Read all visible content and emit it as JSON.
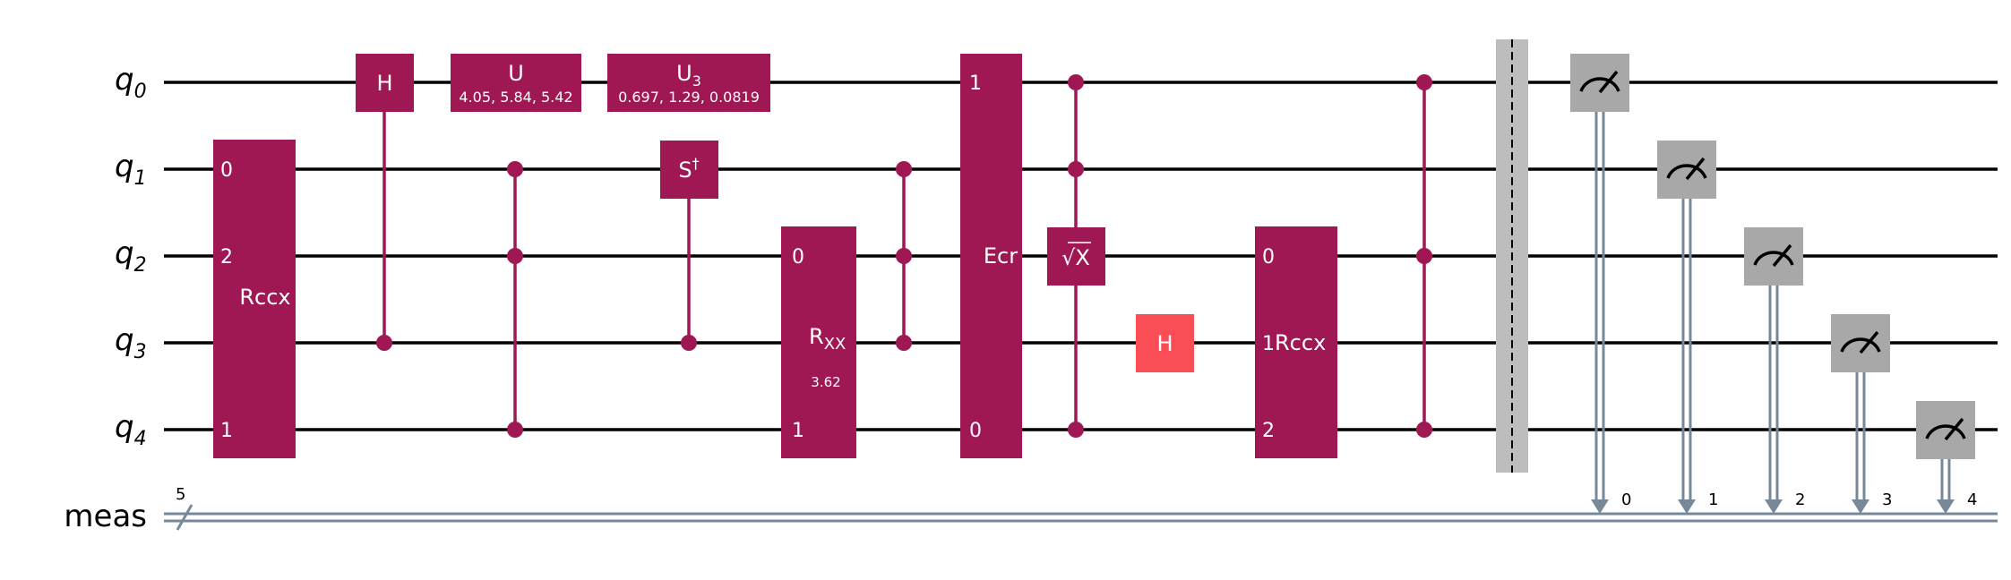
{
  "colors": {
    "gate": "#9F1853",
    "hadamard_alt": "#FA4D56",
    "measure": "#A8A8A8",
    "classical": "#778899",
    "barrier": "#BDBDBD",
    "wire": "#000000"
  },
  "qubits": [
    {
      "name": "q",
      "index": "0"
    },
    {
      "name": "q",
      "index": "1"
    },
    {
      "name": "q",
      "index": "2"
    },
    {
      "name": "q",
      "index": "3"
    },
    {
      "name": "q",
      "index": "4"
    }
  ],
  "classical_register": {
    "label": "meas",
    "size": "5"
  },
  "gates": {
    "rccx": {
      "label": "Rccx",
      "ports": [
        "0",
        "2",
        "1"
      ]
    },
    "h0": {
      "label": "H"
    },
    "u": {
      "label": "U",
      "params": "4.05, 5.84, 5.42"
    },
    "u3": {
      "label": "U",
      "sub": "3",
      "params": "0.697, 1.29, 0.0819"
    },
    "sdg": {
      "label": "S",
      "sup": "†"
    },
    "rxx": {
      "label": "R",
      "sub": "XX",
      "param": "3.62",
      "ports": [
        "0",
        "1"
      ]
    },
    "ecr": {
      "label": "Ecr",
      "ports": [
        "1",
        "0"
      ]
    },
    "sx": {
      "label": "X",
      "radical": "√"
    },
    "h3": {
      "label": "H"
    },
    "rccx2": {
      "label": "Rccx",
      "ports": [
        "0",
        "1",
        "2"
      ]
    }
  },
  "measure_bits": [
    "0",
    "1",
    "2",
    "3",
    "4"
  ]
}
